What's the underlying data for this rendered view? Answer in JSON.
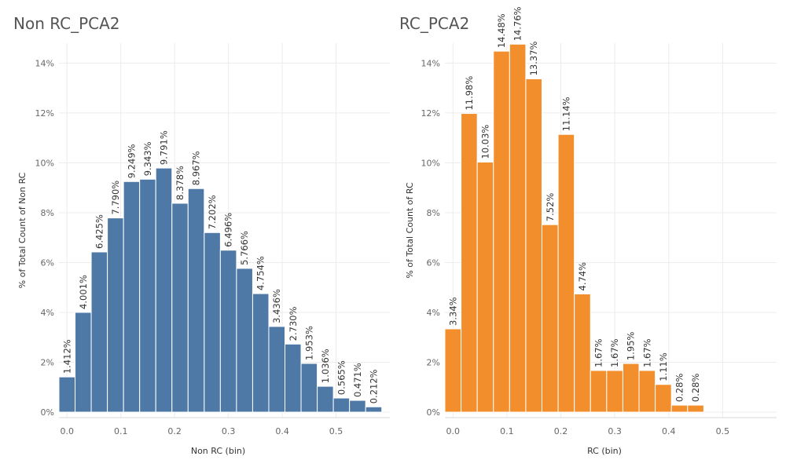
{
  "chart_data": [
    {
      "type": "bar",
      "title": "Non RC_PCA2",
      "xlabel": "Non RC (bin)",
      "ylabel": "% of Total Count of Non RC",
      "color": "#4e79a7",
      "bin_width": 0.03,
      "bin_start": -0.015,
      "xlim": [
        -0.015,
        0.6
      ],
      "ylim": [
        0,
        14.8
      ],
      "xticks": [
        0.0,
        0.1,
        0.2,
        0.3,
        0.4,
        0.5
      ],
      "xtick_labels": [
        "0.0",
        "0.1",
        "0.2",
        "0.3",
        "0.4",
        "0.5"
      ],
      "yticks": [
        0,
        2,
        4,
        6,
        8,
        10,
        12,
        14
      ],
      "ytick_labels": [
        "0%",
        "2%",
        "4%",
        "6%",
        "8%",
        "10%",
        "12%",
        "14%"
      ],
      "values": [
        1.412,
        4.001,
        6.425,
        7.79,
        9.249,
        9.343,
        9.791,
        8.378,
        8.967,
        7.202,
        6.496,
        5.766,
        4.754,
        3.436,
        2.73,
        1.953,
        1.036,
        0.565,
        0.471,
        0.212
      ],
      "labels": [
        "1.412%",
        "4.001%",
        "6.425%",
        "7.790%",
        "9.249%",
        "9.343%",
        "9.791%",
        "8.378%",
        "8.967%",
        "7.202%",
        "6.496%",
        "5.766%",
        "4.754%",
        "3.436%",
        "2.730%",
        "1.953%",
        "1.036%",
        "0.565%",
        "0.471%",
        "0.212%"
      ]
    },
    {
      "type": "bar",
      "title": "RC_PCA2",
      "xlabel": "RC (bin)",
      "ylabel": "% of Total Count of RC",
      "color": "#f28e2b",
      "bin_width": 0.03,
      "bin_start": -0.015,
      "xlim": [
        -0.015,
        0.6
      ],
      "ylim": [
        0,
        14.8
      ],
      "xticks": [
        0.0,
        0.1,
        0.2,
        0.3,
        0.4,
        0.5
      ],
      "xtick_labels": [
        "0.0",
        "0.1",
        "0.2",
        "0.3",
        "0.4",
        "0.5"
      ],
      "yticks": [
        0,
        2,
        4,
        6,
        8,
        10,
        12,
        14
      ],
      "ytick_labels": [
        "0%",
        "2%",
        "4%",
        "6%",
        "8%",
        "10%",
        "12%",
        "14%"
      ],
      "values": [
        3.34,
        11.98,
        10.03,
        14.48,
        14.76,
        13.37,
        7.52,
        11.14,
        4.74,
        1.67,
        1.67,
        1.95,
        1.67,
        1.11,
        0.28,
        0.28
      ],
      "labels": [
        "3.34%",
        "11.98%",
        "10.03%",
        "14.48%",
        "14.76%",
        "13.37%",
        "7.52%",
        "11.14%",
        "4.74%",
        "1.67%",
        "1.67%",
        "1.95%",
        "1.67%",
        "1.11%",
        "0.28%",
        "0.28%"
      ]
    }
  ]
}
